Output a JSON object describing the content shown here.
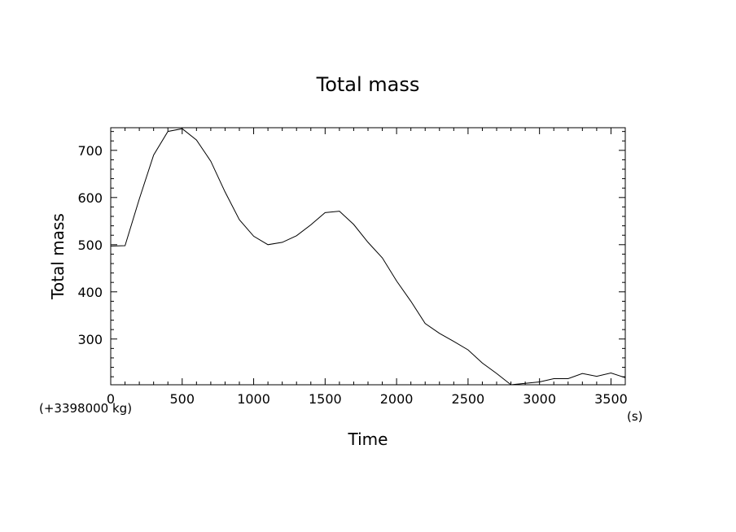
{
  "chart_data": {
    "type": "line",
    "title": "Total mass",
    "xlabel": "Time",
    "ylabel": "Total mass",
    "x_unit": "(s)",
    "y_offset_note": "(+3398000 kg)",
    "xlim": [
      0,
      3600
    ],
    "ylim": [
      203,
      748
    ],
    "x_ticks": [
      0,
      500,
      1000,
      1500,
      2000,
      2500,
      3000,
      3500
    ],
    "x_tick_labels": [
      "0",
      "500",
      "1000",
      "1500",
      "2000",
      "2500",
      "3000",
      "3500"
    ],
    "y_ticks": [
      300,
      400,
      500,
      600,
      700
    ],
    "y_tick_labels": [
      "300",
      "400",
      "500",
      "600",
      "700"
    ],
    "grid": false,
    "line_color": "#000000",
    "series": [
      {
        "x": [
          0,
          100,
          200,
          300,
          400,
          500,
          600,
          700,
          800,
          900,
          1000,
          1100,
          1200,
          1300,
          1400,
          1500,
          1600,
          1700,
          1800,
          1900,
          2000,
          2100,
          2200,
          2300,
          2400,
          2500,
          2600,
          2700,
          2800,
          2900,
          3000,
          3100,
          3200,
          3300,
          3400,
          3500,
          3600
        ],
        "values": [
          497,
          498,
          597,
          690,
          740,
          746,
          722,
          677,
          612,
          553,
          518,
          500,
          505,
          519,
          542,
          568,
          571,
          543,
          505,
          472,
          423,
          380,
          333,
          312,
          295,
          277,
          249,
          227,
          203,
          206,
          209,
          216,
          216,
          227,
          221,
          228,
          218
        ]
      }
    ]
  }
}
